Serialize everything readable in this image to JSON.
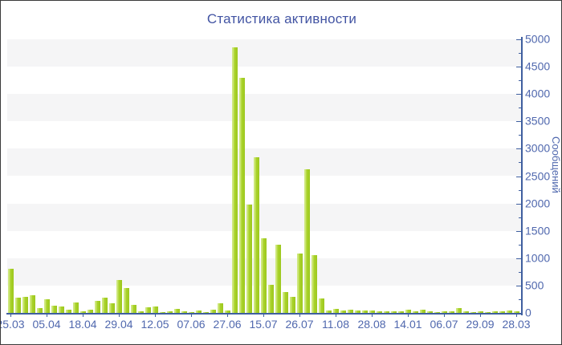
{
  "title": "Статистика активности",
  "colors": {
    "title": "#4254a3",
    "label": "#5068ae",
    "axis": "#3f5f9f",
    "band": "#f5f5f6",
    "bar": "#aad32b",
    "bar_highlight": "#cfe87f",
    "bar_shade": "#9cc71e",
    "background": "#ffffff"
  },
  "chart_data": {
    "type": "bar",
    "title": "Статистика активности",
    "xlabel": "",
    "ylabel": "Сообщений",
    "ylim": [
      0,
      5000
    ],
    "y_tick_step": 500,
    "y_minor_tick_step": 250,
    "y_axis_side": "right",
    "grid": "alternating horizontal bands, light gray, 500-unit tall",
    "legend_position": "none",
    "x_tick_labels": [
      "25.03",
      "05.04",
      "18.04",
      "29.04",
      "12.05",
      "07.06",
      "27.06",
      "15.07",
      "26.07",
      "11.08",
      "28.08",
      "14.01",
      "06.07",
      "29.09",
      "28.03"
    ],
    "x_tick_every_n_bars": 5,
    "values": [
      800,
      280,
      290,
      320,
      90,
      250,
      130,
      120,
      60,
      190,
      30,
      60,
      220,
      280,
      180,
      600,
      450,
      150,
      30,
      100,
      120,
      20,
      30,
      70,
      35,
      20,
      50,
      20,
      60,
      175,
      40,
      4860,
      4290,
      1980,
      2840,
      1370,
      520,
      1250,
      385,
      300,
      1080,
      2630,
      1060,
      270,
      45,
      75,
      45,
      60,
      45,
      50,
      45,
      35,
      35,
      35,
      25,
      60,
      25,
      60,
      35,
      15,
      25,
      35,
      85,
      25,
      20,
      25,
      20,
      35,
      35,
      50,
      30
    ]
  }
}
